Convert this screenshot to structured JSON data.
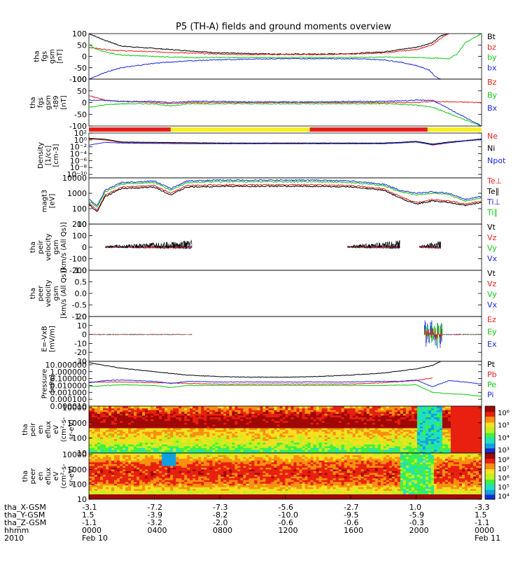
{
  "title": "P5 (TH-A) fields and ground moments overview",
  "colors": {
    "black": "#000000",
    "red": "#e8201c",
    "green": "#10c810",
    "blue": "#1a2adc",
    "yellow": "#f8f020"
  },
  "chart_data": [
    {
      "id": "fgs",
      "type": "line",
      "ylabel": [
        "tha",
        "fgs",
        "gsm",
        "[nT]"
      ],
      "ylim": [
        -100,
        100
      ],
      "yticks": [
        "100",
        "50",
        "0",
        "-50",
        "-100"
      ],
      "legend": [
        "Bt",
        "bz",
        "by",
        "bx"
      ],
      "legend_colors": [
        "#000000",
        "#e8201c",
        "#10c810",
        "#1a2adc"
      ],
      "series": [
        {
          "name": "Bt",
          "x": [
            0,
            1,
            2,
            3,
            4,
            6,
            8,
            10,
            12,
            14,
            16,
            18,
            20,
            21,
            21.5,
            22
          ],
          "values": [
            100,
            70,
            45,
            40,
            35,
            25,
            15,
            12,
            10,
            10,
            12,
            20,
            40,
            60,
            90,
            100
          ]
        },
        {
          "name": "bz",
          "x": [
            0,
            1,
            2,
            4,
            6,
            8,
            10,
            12,
            14,
            16,
            18,
            20,
            21,
            21.5,
            22
          ],
          "values": [
            40,
            30,
            25,
            20,
            15,
            10,
            8,
            8,
            8,
            10,
            15,
            30,
            50,
            80,
            100
          ]
        },
        {
          "name": "by",
          "x": [
            0,
            0.5,
            1,
            2,
            4,
            6,
            8,
            10,
            12,
            14,
            16,
            18,
            20,
            22,
            22.5,
            23,
            24
          ],
          "values": [
            50,
            30,
            20,
            5,
            0,
            -5,
            -5,
            -5,
            -5,
            -5,
            -5,
            -3,
            -5,
            -10,
            10,
            60,
            100
          ]
        },
        {
          "name": "bx",
          "x": [
            0,
            1,
            2,
            4,
            6,
            8,
            10,
            12,
            14,
            16,
            18,
            19,
            20,
            20.8,
            21.2,
            21.5
          ],
          "values": [
            -100,
            -70,
            -50,
            -30,
            -20,
            -15,
            -12,
            -10,
            -10,
            -10,
            -15,
            -25,
            -40,
            -60,
            -90,
            -100
          ]
        }
      ]
    },
    {
      "id": "fgs2",
      "type": "line",
      "ylabel": [
        "tha",
        "fgs",
        "gsm",
        "-t89",
        "[nT]"
      ],
      "ylim": [
        -100,
        100
      ],
      "yticks": [
        "100",
        "50",
        "0",
        "-50",
        "-100"
      ],
      "legend": [
        "Bz",
        "By",
        "Bx"
      ],
      "legend_colors": [
        "#e8201c",
        "#10c810",
        "#1a2adc"
      ],
      "series": [
        {
          "name": "Bz",
          "x": [
            0,
            1,
            2,
            4,
            5,
            6,
            8,
            10,
            12,
            14,
            16,
            18,
            20,
            21,
            24
          ],
          "values": [
            30,
            10,
            5,
            0,
            -5,
            0,
            0,
            0,
            0,
            0,
            0,
            0,
            0,
            5,
            0
          ]
        },
        {
          "name": "By",
          "x": [
            0,
            1,
            2,
            4,
            5,
            6,
            8,
            10,
            12,
            14,
            16,
            18,
            20,
            21,
            24
          ],
          "values": [
            -20,
            -10,
            -5,
            -5,
            -15,
            -5,
            -5,
            -5,
            -5,
            -5,
            -5,
            -5,
            -10,
            -20,
            -100
          ]
        },
        {
          "name": "Bx",
          "x": [
            0,
            1,
            2,
            4,
            5,
            6,
            8,
            10,
            12,
            14,
            16,
            18,
            20,
            21,
            24
          ],
          "values": [
            10,
            10,
            5,
            5,
            0,
            5,
            5,
            3,
            3,
            3,
            5,
            5,
            10,
            10,
            -100
          ]
        }
      ]
    },
    {
      "id": "density",
      "type": "line",
      "ylabel": [
        "Density",
        "[1/cc]",
        "[cm-3]"
      ],
      "ylog": true,
      "ylim": [
        -11,
        2
      ],
      "yticks": [
        "10^2",
        "10^0",
        "10^-2",
        "10^-4",
        "10^-6",
        "10^-8",
        "10^-10"
      ],
      "legend": [
        "Ne",
        "Ni",
        "Npot"
      ],
      "legend_colors": [
        "#e8201c",
        "#000000",
        "#1a2adc"
      ],
      "series": [
        {
          "name": "Ne",
          "x": [
            0,
            1,
            2,
            4,
            6,
            8,
            10,
            12,
            14,
            16,
            18,
            19,
            20,
            21,
            22,
            23,
            24
          ],
          "values": [
            0.3,
            0,
            -0.8,
            -0.9,
            -1,
            -1,
            -1,
            -1,
            -1,
            -1,
            -1,
            -0.8,
            -0.5,
            -1.5,
            -0.8,
            -0.3,
            0.2
          ]
        },
        {
          "name": "Ni",
          "x": [
            0,
            1,
            2,
            4,
            6,
            8,
            10,
            12,
            14,
            16,
            18,
            19,
            20,
            21,
            22,
            23,
            24
          ],
          "values": [
            0.5,
            0.2,
            -0.6,
            -0.7,
            -0.8,
            -0.9,
            -0.9,
            -0.9,
            -0.9,
            -0.9,
            -0.9,
            -0.7,
            -0.4,
            -1.2,
            -0.6,
            -0.2,
            0.3
          ]
        },
        {
          "name": "Npot",
          "x": [
            0,
            1,
            2,
            4,
            6,
            8,
            10,
            12,
            14,
            16,
            18,
            19,
            20,
            21,
            22,
            23,
            24
          ],
          "values": [
            -1.5,
            -0.7,
            -0.9,
            -1,
            -1.1,
            -1.1,
            -1.1,
            -1.1,
            -1.1,
            -1.1,
            -1.1,
            -0.9,
            -0.6,
            -1.4,
            -0.8,
            -0.3,
            0.1
          ]
        }
      ]
    },
    {
      "id": "temp",
      "type": "line",
      "ylabel": [
        "magt3",
        "[eV]"
      ],
      "ylog": true,
      "ylim": [
        1,
        4
      ],
      "yticks": [
        "10000",
        "1000",
        "100",
        "10"
      ],
      "legend": [
        "Te⊥",
        "Te∥",
        "Ti⊥",
        "Ti∥"
      ],
      "legend_colors": [
        "#e8201c",
        "#000000",
        "#1a2adc",
        "#10c810"
      ],
      "series": [
        {
          "name": "Ti⊥",
          "x": [
            0,
            0.5,
            1,
            2,
            4,
            5,
            6,
            8,
            10,
            12,
            14,
            16,
            18,
            19,
            20,
            21,
            22,
            23,
            24
          ],
          "values": [
            2.6,
            2.2,
            3.2,
            3.7,
            3.8,
            3.3,
            3.8,
            3.85,
            3.85,
            3.85,
            3.85,
            3.8,
            3.6,
            3.2,
            3.0,
            3.1,
            3.0,
            2.6,
            2.8
          ]
        },
        {
          "name": "Ti∥",
          "x": [
            0,
            0.5,
            1,
            2,
            4,
            5,
            6,
            8,
            10,
            12,
            14,
            16,
            18,
            19,
            20,
            21,
            22,
            23,
            24
          ],
          "values": [
            2.5,
            2.1,
            3.1,
            3.6,
            3.7,
            3.2,
            3.7,
            3.75,
            3.75,
            3.75,
            3.75,
            3.7,
            3.5,
            3.1,
            2.9,
            3.0,
            2.9,
            2.5,
            2.7
          ]
        },
        {
          "name": "Te⊥",
          "x": [
            0,
            0.5,
            1,
            2,
            4,
            5,
            6,
            8,
            10,
            12,
            14,
            16,
            18,
            19,
            20,
            21,
            22,
            23,
            24
          ],
          "values": [
            2.4,
            1.9,
            2.9,
            3.4,
            3.5,
            3.0,
            3.5,
            3.55,
            3.55,
            3.55,
            3.55,
            3.5,
            3.3,
            2.8,
            2.4,
            2.6,
            2.5,
            2.3,
            2.5
          ]
        },
        {
          "name": "Te∥",
          "x": [
            0,
            0.5,
            1,
            2,
            4,
            5,
            6,
            8,
            10,
            12,
            14,
            16,
            18,
            19,
            20,
            21,
            22,
            23,
            24
          ],
          "values": [
            2.3,
            1.8,
            2.8,
            3.3,
            3.4,
            2.9,
            3.4,
            3.45,
            3.45,
            3.45,
            3.45,
            3.4,
            3.2,
            2.7,
            2.3,
            2.5,
            2.4,
            2.2,
            2.4
          ]
        }
      ]
    },
    {
      "id": "peir",
      "type": "line",
      "ylabel": [
        "tha",
        "peir",
        "velocity",
        "gsm",
        "[km/s (All Qs)]"
      ],
      "ylim": [
        -200,
        200
      ],
      "yticks": [
        "200",
        "100",
        "0",
        "-100",
        "-200"
      ],
      "legend": [
        "Vt",
        "Vz",
        "Vy",
        "Vx"
      ],
      "legend_colors": [
        "#000000",
        "#e8201c",
        "#10c810",
        "#1a2adc"
      ],
      "noise_segments": [
        [
          1,
          6.3
        ],
        [
          15.8,
          19
        ],
        [
          20.2,
          21.5
        ]
      ]
    },
    {
      "id": "peer",
      "type": "line",
      "ylabel": [
        "tha",
        "peer",
        "velocity",
        "gsm",
        "[km/s (All Qs)]"
      ],
      "ylim": [
        -1,
        1
      ],
      "yticks": [
        "1.0",
        "0.5",
        "0.0",
        "-0.5",
        "-1.0"
      ],
      "legend": [
        "Vt",
        "Vz",
        "Vy",
        "Vx"
      ],
      "legend_colors": [
        "#000000",
        "#e8201c",
        "#10c810",
        "#1a2adc"
      ]
    },
    {
      "id": "efield",
      "type": "line",
      "ylabel": [
        "E=-VxB",
        "[mV/m]"
      ],
      "ylim": [
        -30,
        20
      ],
      "yticks": [
        "20",
        "10",
        "0",
        "-10",
        "-20",
        "-30"
      ],
      "legend": [
        "Ez",
        "Ey",
        "Ex"
      ],
      "legend_colors": [
        "#e8201c",
        "#10c810",
        "#1a2adc"
      ]
    },
    {
      "id": "pressure",
      "type": "line",
      "ylabel": [
        "Pressure",
        "[nPa]"
      ],
      "ylog": true,
      "ylim": [
        -5,
        1.5
      ],
      "yticks": [
        "10.000000",
        "1.000000",
        "0.100000",
        "0.010000",
        "0.001000",
        "0.000100",
        "0.000010"
      ],
      "legend": [
        "Pt",
        "Pb",
        "Pe",
        "Pi"
      ],
      "legend_colors": [
        "#000000",
        "#e8201c",
        "#10c810",
        "#1a2adc"
      ],
      "series": [
        {
          "name": "Pt",
          "x": [
            0,
            2,
            4,
            6,
            8,
            10,
            12,
            14,
            16,
            18,
            20,
            21,
            21.5
          ],
          "values": [
            1.3,
            0.5,
            0,
            -0.5,
            -0.7,
            -0.8,
            -0.8,
            -0.7,
            -0.5,
            -0.2,
            0.4,
            0.9,
            1.5
          ]
        },
        {
          "name": "Pb",
          "x": [
            0,
            2,
            4,
            6,
            8,
            10,
            12,
            14,
            16,
            18,
            20,
            21
          ],
          "values": [
            -1.5,
            -1.5,
            -1.6,
            -1.7,
            -1.8,
            -1.8,
            -1.8,
            -1.8,
            -1.8,
            -1.6,
            -1.3,
            -0.9
          ]
        },
        {
          "name": "Pe",
          "x": [
            0,
            1,
            2,
            4,
            5,
            6,
            8,
            10,
            12,
            14,
            16,
            18,
            20,
            21,
            22,
            23,
            24
          ],
          "values": [
            -2.2,
            -2,
            -1.9,
            -2,
            -2.3,
            -2.0,
            -2.0,
            -2.0,
            -2.0,
            -2.0,
            -2.0,
            -2.0,
            -1.9,
            -3,
            -3.2,
            -3.3,
            -3.6
          ]
        },
        {
          "name": "Pi",
          "x": [
            0,
            1,
            2,
            4,
            5,
            6,
            8,
            10,
            12,
            14,
            16,
            18,
            19,
            20,
            21,
            22,
            23,
            24
          ],
          "values": [
            -1.6,
            -1.3,
            -1.2,
            -1.4,
            -1.7,
            -1.4,
            -1.5,
            -1.5,
            -1.5,
            -1.5,
            -1.5,
            -1.4,
            -1.4,
            -1.2,
            -2.2,
            -1.3,
            -1.5,
            -1.8
          ]
        }
      ]
    },
    {
      "id": "peir_eflux",
      "type": "heatmap",
      "ylabel": [
        "tha",
        "peir",
        "en",
        "eflux",
        "eV",
        "(cm^2-s-",
        "sr-eV)"
      ],
      "ylog": true,
      "ylim": [
        1,
        4.1
      ],
      "yticks": [
        "10000",
        "1000",
        "100",
        "10"
      ],
      "colorbar_labels": [
        "10^6",
        "10^5",
        "10^4",
        "10^3"
      ]
    },
    {
      "id": "peer_eflux",
      "type": "heatmap",
      "ylabel": [
        "tha",
        "peer",
        "en",
        "eflux",
        "eV",
        "(cm^2-s-",
        "sr-eV)"
      ],
      "ylog": true,
      "ylim": [
        1,
        4.1
      ],
      "yticks": [
        "10000",
        "1000",
        "100",
        "10"
      ],
      "colorbar_labels": [
        "10^8",
        "10^7",
        "10^6",
        "10^5",
        "10^4"
      ]
    }
  ],
  "mode_bar": [
    {
      "from": 0,
      "to": 5,
      "color": "#e8201c"
    },
    {
      "from": 5,
      "to": 13.5,
      "color": "#f8f020"
    },
    {
      "from": 13.5,
      "to": 20.7,
      "color": "#e8201c"
    },
    {
      "from": 20.7,
      "to": 24,
      "color": "#f8f020"
    }
  ],
  "x_axis": {
    "xlim": [
      0,
      24
    ],
    "tick_hours": [
      0,
      4,
      8,
      12,
      16,
      20,
      24
    ],
    "rows": [
      {
        "label": "tha_X-GSM",
        "values": [
          "-3.1",
          "-7.2",
          "-7.3",
          "-5.6",
          "-2.7",
          "1.0",
          "-3.3"
        ]
      },
      {
        "label": "tha_Y-GSM",
        "values": [
          "1.5",
          "-3.9",
          "-8.2",
          "-10.0",
          "-9.5",
          "-5.9",
          "1.5"
        ]
      },
      {
        "label": "tha_Z-GSM",
        "values": [
          "-1.1",
          "-3.2",
          "-2.0",
          "-0.6",
          "-0.6",
          "-0.3",
          "-1.1"
        ]
      },
      {
        "label": "hhmm",
        "values": [
          "0000",
          "0400",
          "0800",
          "1200",
          "1600",
          "2000",
          "0000"
        ]
      },
      {
        "label": "2010",
        "values": [
          "Feb 10",
          "",
          "",
          "",
          "",
          "",
          "Feb 11"
        ]
      }
    ]
  }
}
